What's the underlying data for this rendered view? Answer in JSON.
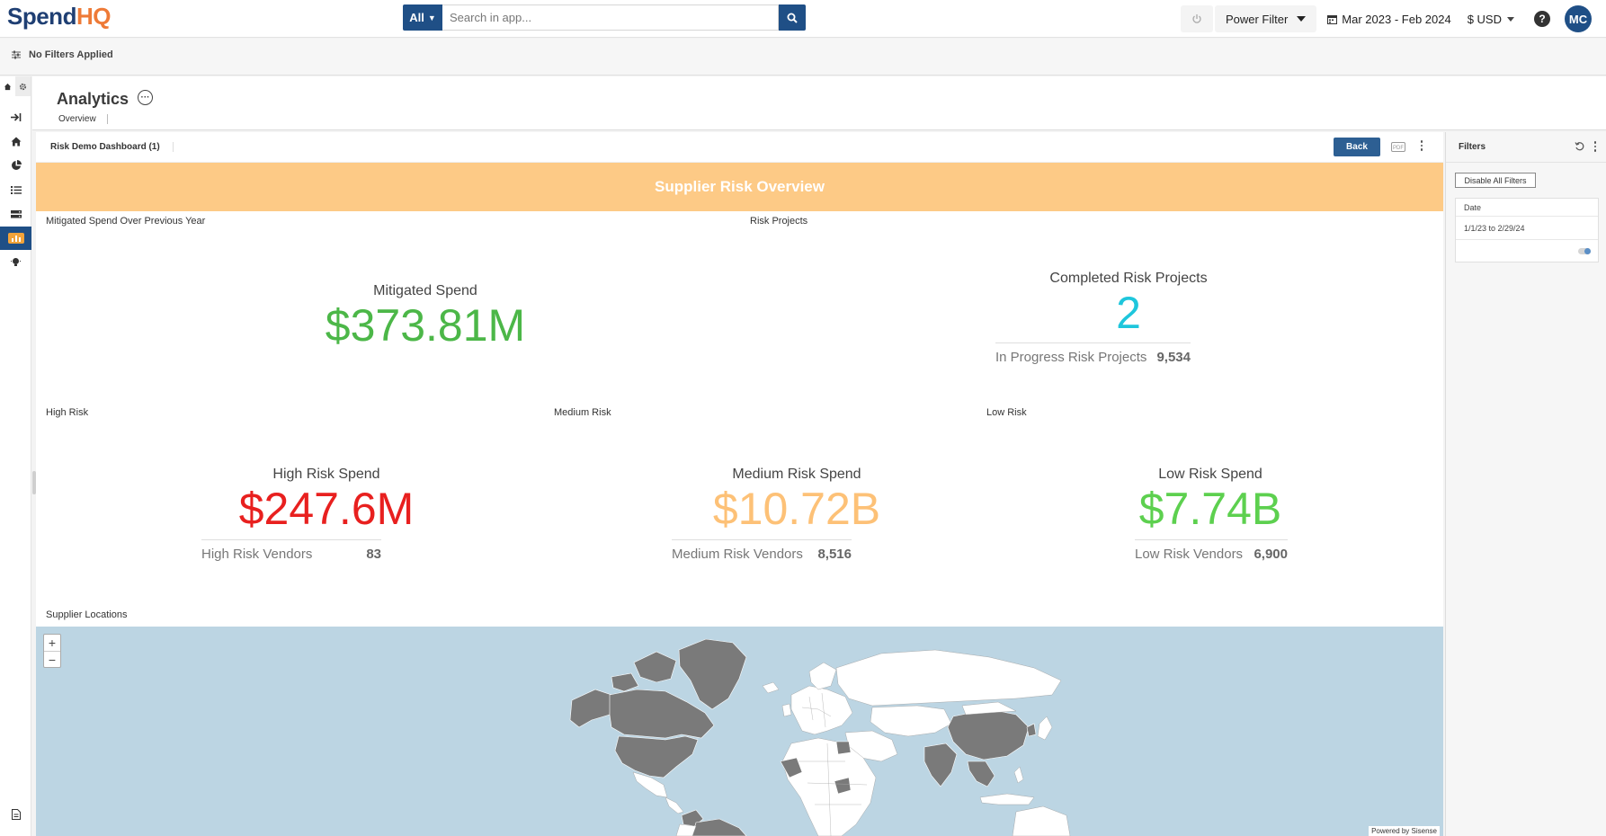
{
  "app": {
    "logo_left": "Spend",
    "logo_right": "HQ",
    "search": {
      "scope": "All",
      "placeholder": "Search in app..."
    },
    "power_filter": "Power Filter",
    "date_range": "Mar 2023 - Feb 2024",
    "currency": "$ USD",
    "help": "?",
    "user_initials": "MC"
  },
  "filter_bar": {
    "text": "No Filters Applied"
  },
  "header": {
    "title": "Analytics",
    "tab": "Overview"
  },
  "dashboard": {
    "title": "Risk Demo Dashboard (1)",
    "back_label": "Back",
    "banner": "Supplier Risk Overview",
    "widgets": {
      "mitigated": {
        "label": "Mitigated Spend Over Previous Year",
        "title": "Mitigated Spend",
        "value": "$373.81M",
        "color": "#4cb748"
      },
      "projects": {
        "label": "Risk Projects",
        "title": "Completed Risk Projects",
        "value": "2",
        "color": "#1ec6dc",
        "sub_label": "In Progress Risk Projects",
        "sub_value": "9,534"
      },
      "high": {
        "label": "High Risk",
        "title": "High Risk Spend",
        "value": "$247.6M",
        "color": "#e8201f",
        "sub_label": "High Risk Vendors",
        "sub_value": "83"
      },
      "medium": {
        "label": "Medium Risk",
        "title": "Medium Risk Spend",
        "value": "$10.72B",
        "color": "#fdc177",
        "sub_label": "Medium Risk Vendors",
        "sub_value": "8,516"
      },
      "low": {
        "label": "Low Risk",
        "title": "Low Risk Spend",
        "value": "$7.74B",
        "color": "#5dd04f",
        "sub_label": "Low Risk Vendors",
        "sub_value": "6,900"
      },
      "map": {
        "label": "Supplier Locations",
        "zoom_in": "+",
        "zoom_out": "−",
        "powered_by": "Powered by Sisense"
      }
    }
  },
  "filters_panel": {
    "title": "Filters",
    "disable_all": "Disable All Filters",
    "date_filter": {
      "name": "Date",
      "value": "1/1/23 to 2/29/24",
      "enabled": true
    }
  },
  "colors": {
    "brand_blue": "#1f4f86",
    "brand_orange": "#ee7a37",
    "banner": "#fdca86",
    "map_water": "#bcd5e3",
    "map_land": "#ffffff",
    "map_highlight": "#7a7a7a"
  }
}
